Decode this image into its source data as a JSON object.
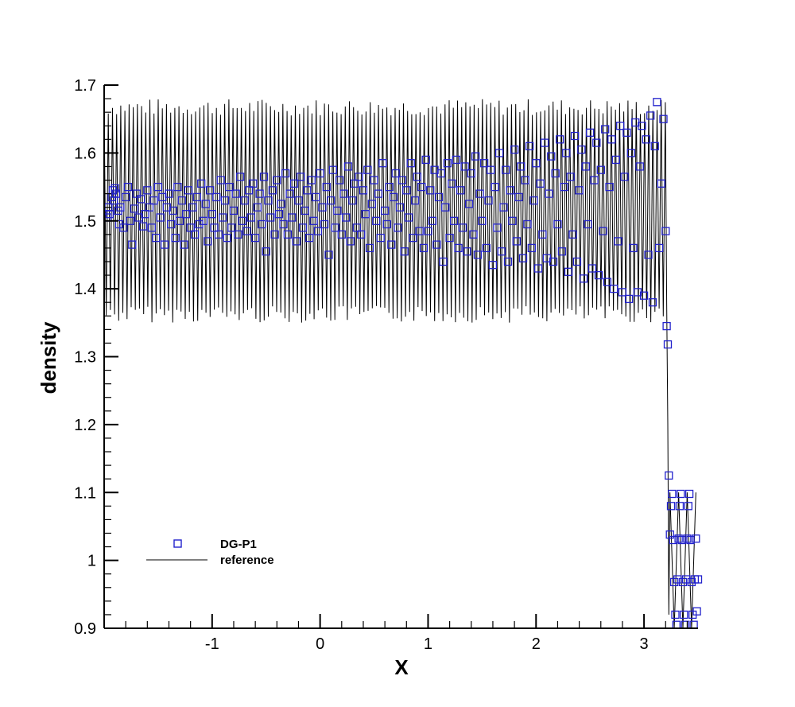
{
  "chart_data": {
    "type": "line",
    "xlabel": "X",
    "ylabel": "density",
    "xlim": [
      -2.0,
      3.5
    ],
    "ylim": [
      0.9,
      1.7
    ],
    "x_ticks": [
      -1,
      0,
      1,
      2,
      3
    ],
    "x_tick_labels": [
      "-1",
      "0",
      "1",
      "2",
      "3"
    ],
    "y_ticks": [
      0.9,
      1.0,
      1.1,
      1.2,
      1.3,
      1.4,
      1.5,
      1.6,
      1.7
    ],
    "y_tick_labels": [
      "0.9",
      "1",
      "1.1",
      "1.2",
      "1.3",
      "1.4",
      "1.5",
      "1.6",
      "1.7"
    ],
    "legend_position": "lower-left",
    "series": [
      {
        "name": "DG-P1",
        "kind": "scatter",
        "marker": "square",
        "color": "#2222cc",
        "description": "noisy density samples between 1.38 and 1.67 up to x = 3.15; drops through 1.34, 1.32, 1.12 to 0.90–1.10 oscillation past x = 3.2",
        "points": [
          [
            -1.97,
            1.505
          ],
          [
            -1.96,
            1.52
          ],
          [
            -1.95,
            1.51
          ],
          [
            -1.93,
            1.535
          ],
          [
            -1.92,
            1.545
          ],
          [
            -1.91,
            1.53
          ],
          [
            -1.9,
            1.548
          ],
          [
            -1.89,
            1.54
          ],
          [
            -1.87,
            1.515
          ],
          [
            -1.86,
            1.495
          ],
          [
            -1.85,
            1.52
          ],
          [
            -1.82,
            1.49
          ],
          [
            -1.8,
            1.535
          ],
          [
            -1.78,
            1.55
          ],
          [
            -1.76,
            1.5
          ],
          [
            -1.74,
            1.465
          ],
          [
            -1.72,
            1.518
          ],
          [
            -1.7,
            1.54
          ],
          [
            -1.68,
            1.505
          ],
          [
            -1.66,
            1.532
          ],
          [
            -1.64,
            1.492
          ],
          [
            -1.62,
            1.51
          ],
          [
            -1.6,
            1.545
          ],
          [
            -1.58,
            1.52
          ],
          [
            -1.56,
            1.49
          ],
          [
            -1.54,
            1.53
          ],
          [
            -1.52,
            1.475
          ],
          [
            -1.5,
            1.55
          ],
          [
            -1.48,
            1.505
          ],
          [
            -1.46,
            1.535
          ],
          [
            -1.44,
            1.465
          ],
          [
            -1.42,
            1.52
          ],
          [
            -1.4,
            1.54
          ],
          [
            -1.38,
            1.495
          ],
          [
            -1.36,
            1.515
          ],
          [
            -1.34,
            1.475
          ],
          [
            -1.32,
            1.55
          ],
          [
            -1.3,
            1.5
          ],
          [
            -1.28,
            1.53
          ],
          [
            -1.26,
            1.465
          ],
          [
            -1.24,
            1.51
          ],
          [
            -1.22,
            1.545
          ],
          [
            -1.2,
            1.49
          ],
          [
            -1.18,
            1.52
          ],
          [
            -1.16,
            1.48
          ],
          [
            -1.14,
            1.535
          ],
          [
            -1.12,
            1.495
          ],
          [
            -1.1,
            1.555
          ],
          [
            -1.08,
            1.5
          ],
          [
            -1.06,
            1.525
          ],
          [
            -1.04,
            1.47
          ],
          [
            -1.02,
            1.545
          ],
          [
            -1.0,
            1.51
          ],
          [
            -0.98,
            1.49
          ],
          [
            -0.96,
            1.535
          ],
          [
            -0.94,
            1.48
          ],
          [
            -0.92,
            1.56
          ],
          [
            -0.9,
            1.505
          ],
          [
            -0.88,
            1.53
          ],
          [
            -0.86,
            1.475
          ],
          [
            -0.84,
            1.55
          ],
          [
            -0.82,
            1.49
          ],
          [
            -0.8,
            1.515
          ],
          [
            -0.78,
            1.54
          ],
          [
            -0.76,
            1.48
          ],
          [
            -0.74,
            1.565
          ],
          [
            -0.72,
            1.5
          ],
          [
            -0.7,
            1.53
          ],
          [
            -0.68,
            1.485
          ],
          [
            -0.66,
            1.545
          ],
          [
            -0.64,
            1.505
          ],
          [
            -0.62,
            1.555
          ],
          [
            -0.6,
            1.475
          ],
          [
            -0.58,
            1.52
          ],
          [
            -0.56,
            1.54
          ],
          [
            -0.54,
            1.495
          ],
          [
            -0.52,
            1.565
          ],
          [
            -0.5,
            1.455
          ],
          [
            -0.48,
            1.53
          ],
          [
            -0.46,
            1.505
          ],
          [
            -0.44,
            1.545
          ],
          [
            -0.42,
            1.48
          ],
          [
            -0.4,
            1.56
          ],
          [
            -0.38,
            1.51
          ],
          [
            -0.36,
            1.525
          ],
          [
            -0.34,
            1.495
          ],
          [
            -0.32,
            1.57
          ],
          [
            -0.3,
            1.48
          ],
          [
            -0.28,
            1.54
          ],
          [
            -0.26,
            1.505
          ],
          [
            -0.24,
            1.555
          ],
          [
            -0.22,
            1.47
          ],
          [
            -0.2,
            1.53
          ],
          [
            -0.18,
            1.565
          ],
          [
            -0.16,
            1.49
          ],
          [
            -0.14,
            1.515
          ],
          [
            -0.12,
            1.545
          ],
          [
            -0.1,
            1.475
          ],
          [
            -0.08,
            1.56
          ],
          [
            -0.06,
            1.5
          ],
          [
            -0.04,
            1.535
          ],
          [
            -0.02,
            1.485
          ],
          [
            0.0,
            1.57
          ],
          [
            0.02,
            1.52
          ],
          [
            0.04,
            1.495
          ],
          [
            0.06,
            1.55
          ],
          [
            0.08,
            1.45
          ],
          [
            0.1,
            1.53
          ],
          [
            0.12,
            1.575
          ],
          [
            0.14,
            1.49
          ],
          [
            0.16,
            1.515
          ],
          [
            0.18,
            1.56
          ],
          [
            0.2,
            1.48
          ],
          [
            0.22,
            1.54
          ],
          [
            0.24,
            1.505
          ],
          [
            0.26,
            1.58
          ],
          [
            0.28,
            1.47
          ],
          [
            0.3,
            1.53
          ],
          [
            0.32,
            1.555
          ],
          [
            0.34,
            1.49
          ],
          [
            0.36,
            1.565
          ],
          [
            0.38,
            1.48
          ],
          [
            0.4,
            1.545
          ],
          [
            0.42,
            1.51
          ],
          [
            0.44,
            1.575
          ],
          [
            0.46,
            1.46
          ],
          [
            0.48,
            1.525
          ],
          [
            0.5,
            1.56
          ],
          [
            0.52,
            1.5
          ],
          [
            0.54,
            1.54
          ],
          [
            0.56,
            1.475
          ],
          [
            0.58,
            1.585
          ],
          [
            0.6,
            1.515
          ],
          [
            0.62,
            1.495
          ],
          [
            0.64,
            1.55
          ],
          [
            0.66,
            1.465
          ],
          [
            0.68,
            1.535
          ],
          [
            0.7,
            1.57
          ],
          [
            0.72,
            1.49
          ],
          [
            0.74,
            1.52
          ],
          [
            0.76,
            1.56
          ],
          [
            0.78,
            1.455
          ],
          [
            0.8,
            1.545
          ],
          [
            0.82,
            1.505
          ],
          [
            0.84,
            1.585
          ],
          [
            0.86,
            1.475
          ],
          [
            0.88,
            1.53
          ],
          [
            0.9,
            1.565
          ],
          [
            0.92,
            1.485
          ],
          [
            0.94,
            1.55
          ],
          [
            0.96,
            1.46
          ],
          [
            0.98,
            1.59
          ],
          [
            1.0,
            1.485
          ],
          [
            1.02,
            1.545
          ],
          [
            1.04,
            1.5
          ],
          [
            1.06,
            1.575
          ],
          [
            1.08,
            1.465
          ],
          [
            1.1,
            1.535
          ],
          [
            1.12,
            1.57
          ],
          [
            1.14,
            1.44
          ],
          [
            1.16,
            1.52
          ],
          [
            1.18,
            1.585
          ],
          [
            1.2,
            1.475
          ],
          [
            1.22,
            1.555
          ],
          [
            1.24,
            1.5
          ],
          [
            1.26,
            1.59
          ],
          [
            1.28,
            1.46
          ],
          [
            1.3,
            1.545
          ],
          [
            1.32,
            1.49
          ],
          [
            1.34,
            1.58
          ],
          [
            1.36,
            1.455
          ],
          [
            1.38,
            1.525
          ],
          [
            1.4,
            1.57
          ],
          [
            1.42,
            1.48
          ],
          [
            1.44,
            1.595
          ],
          [
            1.46,
            1.45
          ],
          [
            1.48,
            1.54
          ],
          [
            1.5,
            1.5
          ],
          [
            1.52,
            1.585
          ],
          [
            1.54,
            1.46
          ],
          [
            1.56,
            1.53
          ],
          [
            1.58,
            1.575
          ],
          [
            1.6,
            1.435
          ],
          [
            1.62,
            1.55
          ],
          [
            1.64,
            1.49
          ],
          [
            1.66,
            1.6
          ],
          [
            1.68,
            1.455
          ],
          [
            1.7,
            1.52
          ],
          [
            1.72,
            1.575
          ],
          [
            1.74,
            1.44
          ],
          [
            1.76,
            1.545
          ],
          [
            1.78,
            1.5
          ],
          [
            1.8,
            1.605
          ],
          [
            1.82,
            1.47
          ],
          [
            1.84,
            1.535
          ],
          [
            1.86,
            1.58
          ],
          [
            1.88,
            1.445
          ],
          [
            1.9,
            1.56
          ],
          [
            1.92,
            1.495
          ],
          [
            1.94,
            1.61
          ],
          [
            1.96,
            1.46
          ],
          [
            1.98,
            1.53
          ],
          [
            2.0,
            1.585
          ],
          [
            2.02,
            1.43
          ],
          [
            2.04,
            1.555
          ],
          [
            2.06,
            1.48
          ],
          [
            2.08,
            1.615
          ],
          [
            2.1,
            1.445
          ],
          [
            2.12,
            1.54
          ],
          [
            2.14,
            1.595
          ],
          [
            2.16,
            1.44
          ],
          [
            2.18,
            1.57
          ],
          [
            2.2,
            1.495
          ],
          [
            2.22,
            1.62
          ],
          [
            2.24,
            1.455
          ],
          [
            2.26,
            1.55
          ],
          [
            2.28,
            1.6
          ],
          [
            2.3,
            1.425
          ],
          [
            2.32,
            1.565
          ],
          [
            2.34,
            1.48
          ],
          [
            2.36,
            1.625
          ],
          [
            2.38,
            1.44
          ],
          [
            2.4,
            1.545
          ],
          [
            2.42,
            1.605
          ],
          [
            2.44,
            1.415
          ],
          [
            2.46,
            1.58
          ],
          [
            2.48,
            1.495
          ],
          [
            2.5,
            1.63
          ],
          [
            2.52,
            1.43
          ],
          [
            2.54,
            1.56
          ],
          [
            2.56,
            1.615
          ],
          [
            2.58,
            1.42
          ],
          [
            2.6,
            1.575
          ],
          [
            2.62,
            1.485
          ],
          [
            2.64,
            1.635
          ],
          [
            2.66,
            1.41
          ],
          [
            2.68,
            1.55
          ],
          [
            2.7,
            1.62
          ],
          [
            2.72,
            1.4
          ],
          [
            2.74,
            1.59
          ],
          [
            2.76,
            1.47
          ],
          [
            2.78,
            1.64
          ],
          [
            2.8,
            1.395
          ],
          [
            2.82,
            1.565
          ],
          [
            2.84,
            1.63
          ],
          [
            2.86,
            1.385
          ],
          [
            2.88,
            1.6
          ],
          [
            2.9,
            1.46
          ],
          [
            2.92,
            1.645
          ],
          [
            2.94,
            1.395
          ],
          [
            2.96,
            1.58
          ],
          [
            2.98,
            1.64
          ],
          [
            3.0,
            1.39
          ],
          [
            3.02,
            1.62
          ],
          [
            3.04,
            1.45
          ],
          [
            3.06,
            1.655
          ],
          [
            3.08,
            1.38
          ],
          [
            3.1,
            1.61
          ],
          [
            3.12,
            1.675
          ],
          [
            3.14,
            1.46
          ],
          [
            3.16,
            1.555
          ],
          [
            3.18,
            1.65
          ],
          [
            3.2,
            1.485
          ],
          [
            3.21,
            1.345
          ],
          [
            3.22,
            1.318
          ],
          [
            3.23,
            1.125
          ],
          [
            3.24,
            1.038
          ],
          [
            3.25,
            1.08
          ],
          [
            3.26,
            1.098
          ],
          [
            3.27,
            1.03
          ],
          [
            3.28,
            0.968
          ],
          [
            3.29,
            0.92
          ],
          [
            3.3,
            0.905
          ],
          [
            3.31,
            0.972
          ],
          [
            3.32,
            1.032
          ],
          [
            3.33,
            1.08
          ],
          [
            3.34,
            1.098
          ],
          [
            3.35,
            1.03
          ],
          [
            3.36,
            0.968
          ],
          [
            3.37,
            0.92
          ],
          [
            3.38,
            0.905
          ],
          [
            3.39,
            0.972
          ],
          [
            3.4,
            1.032
          ],
          [
            3.41,
            1.08
          ],
          [
            3.42,
            1.098
          ],
          [
            3.43,
            1.03
          ],
          [
            3.44,
            0.968
          ],
          [
            3.45,
            0.92
          ],
          [
            3.46,
            0.905
          ],
          [
            3.47,
            0.972
          ],
          [
            3.48,
            1.032
          ],
          [
            3.49,
            0.925
          ],
          [
            3.5,
            0.972
          ]
        ]
      },
      {
        "name": "reference",
        "kind": "line",
        "color": "#000000",
        "description": "high-frequency oscillation between about 1.35 and 1.68 up to x = 3.2, sharp drop at x ≈ 3.22, then oscillation between 0.90 and 1.10 to x = 3.5",
        "oscillation_upper_left": {
          "amplitude_min": 1.35,
          "amplitude_max": 1.68,
          "period": 0.0385,
          "x_end": 3.2
        },
        "drop_x": 3.22,
        "oscillation_lower_right": {
          "min": 0.9,
          "max": 1.1,
          "period": 0.08,
          "x_start": 3.24,
          "x_end": 3.5
        }
      }
    ]
  }
}
